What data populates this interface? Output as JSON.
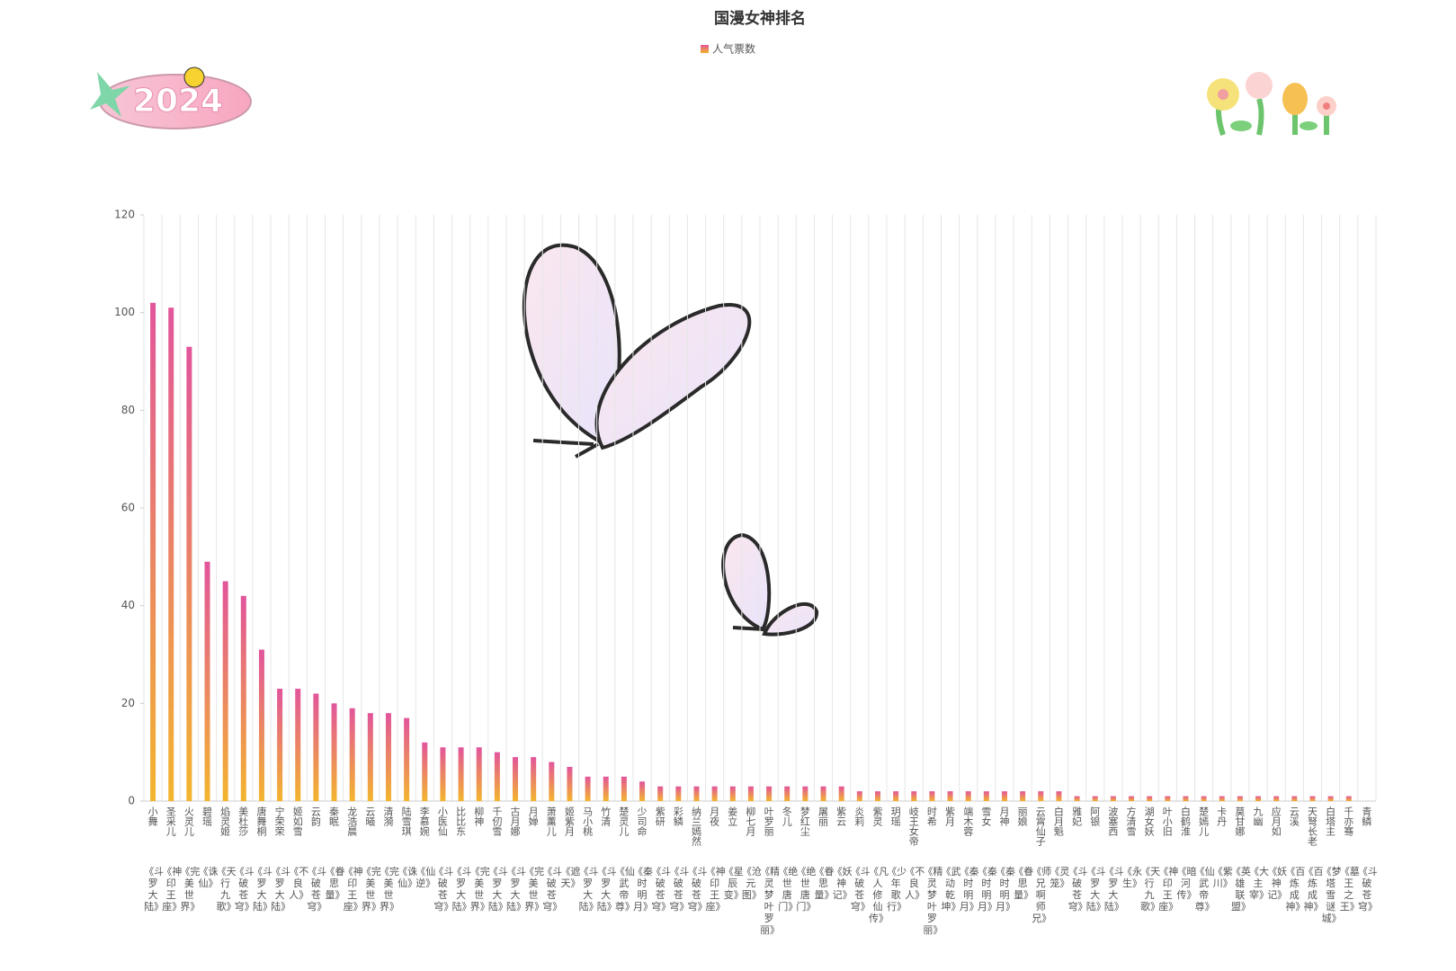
{
  "chart_data": {
    "type": "bar",
    "title": "国漫女神排名",
    "sticker": "2024",
    "series": [
      {
        "name": "人气票数",
        "color_top": "#e2559b",
        "color_bottom": "#f3b52e",
        "values": [
          102,
          101,
          93,
          49,
          45,
          42,
          31,
          23,
          23,
          22,
          20,
          19,
          18,
          18,
          17,
          12,
          11,
          11,
          11,
          10,
          9,
          9,
          8,
          7,
          5,
          5,
          5,
          4,
          3,
          3,
          3,
          3,
          3,
          3,
          3,
          3,
          3,
          3,
          3,
          2,
          2,
          2,
          2,
          2,
          2,
          2,
          2,
          2,
          2,
          2,
          2,
          1,
          1,
          1,
          1,
          1,
          1,
          1,
          1,
          1,
          1,
          1,
          1,
          1,
          1,
          1,
          1,
          0
        ]
      }
    ],
    "categories": [
      "小舞",
      "圣采儿",
      "火灵儿",
      "碧瑶",
      "焰灵姬",
      "美杜莎",
      "唐舞桐",
      "宁荣荣",
      "姬如雪",
      "云韵",
      "秦眠",
      "龙浩晨",
      "云曦",
      "清漪",
      "陆雪琪",
      "李慕婉",
      "小医仙",
      "比比东",
      "柳神",
      "千仞雪",
      "古月娜",
      "月婵",
      "萧薰儿",
      "姬紫月",
      "马小桃",
      "竹清",
      "楚灵儿",
      "少司命",
      "紫研",
      "彩鳞",
      "纳兰嫣然",
      "月夜",
      "姜立",
      "柳七月",
      "叶罗丽",
      "冬儿",
      "梦红尘",
      "屠丽",
      "紫云",
      "炎莉",
      "紫灵",
      "玥瑶",
      "岐王女帝",
      "时希",
      "紫月",
      "端木蓉",
      "雪女",
      "月神",
      "丽娘",
      "云霄仙子",
      "白月魁",
      "雅妃",
      "阿银",
      "波塞西",
      "方清雪",
      "湖女妖",
      "叶小旧",
      "白鹤淮",
      "楚嫣儿",
      "卡丹",
      "莫甘娜",
      "九幽",
      "应月如",
      "云溪",
      "天弩长老",
      "白塔主",
      "千亦骞",
      "青鳞"
    ],
    "works": [
      "《斗罗大陆》",
      "《神印王座》",
      "《完美世界》",
      "《诛仙》",
      "《天行九歌》",
      "《斗破苍穹》",
      "《斗罗大陆》",
      "《斗罗大陆》",
      "《不良人》",
      "《斗破苍穹》",
      "《眷思量》",
      "《神印王座》",
      "《完美世界》",
      "《完美世界》",
      "《诛仙》",
      "《仙逆》",
      "《斗破苍穹》",
      "《斗罗大陆》",
      "《完美世界》",
      "《斗罗大陆》",
      "《斗罗大陆》",
      "《完美世界》",
      "《斗破苍穹》",
      "《遮天》",
      "《斗罗大陆》",
      "《斗罗大陆》",
      "《仙武帝尊》",
      "《秦时明月》",
      "《斗破苍穹》",
      "《斗破苍穹》",
      "《斗破苍穹》",
      "《神印王座》",
      "《星辰变》",
      "《沧元图》",
      "《精灵梦叶罗丽》",
      "《绝世唐门》",
      "《绝世唐门》",
      "《眷思量》",
      "《妖神记》",
      "《斗破苍穹》",
      "《凡人修仙传》",
      "《少年歌行》",
      "《不良人》",
      "《精灵梦叶罗丽》",
      "《武动乾坤》",
      "《秦时明月》",
      "《秦时明月》",
      "《秦时明月》",
      "《眷思量》",
      "《师兄啊师兄》",
      "《灵笼》",
      "《斗破苍穹》",
      "《斗罗大陆》",
      "《斗罗大陆》",
      "《永生》",
      "《天行九歌》",
      "《神印王座》",
      "《暗河传》",
      "《仙武帝尊》",
      "《紫川》",
      "《英雄联盟》",
      "《大主宰》",
      "《妖神记》",
      "《百炼成神》",
      "《百炼成神》",
      "《梦塔雪谜城》",
      "《墓王之王》",
      "《斗破苍穹》"
    ],
    "ylim": [
      0,
      120
    ],
    "yticks": [
      0,
      20,
      40,
      60,
      80,
      100,
      120
    ],
    "grid": "vertical"
  }
}
